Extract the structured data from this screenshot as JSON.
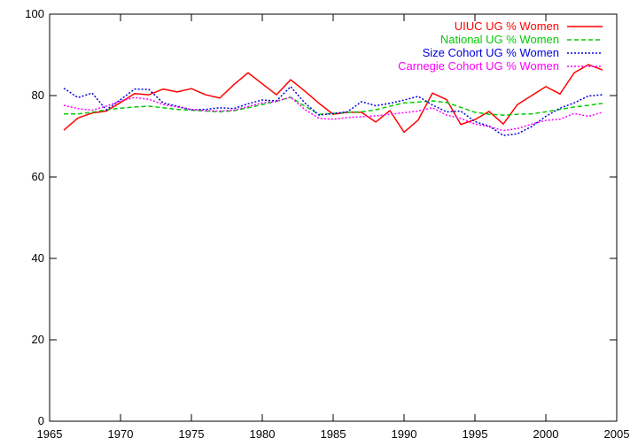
{
  "chart_data": {
    "type": "line",
    "title": "",
    "xlabel": "",
    "ylabel": "",
    "xlim": [
      1965,
      2005
    ],
    "ylim": [
      0,
      100
    ],
    "x_ticks": [
      1965,
      1970,
      1975,
      1980,
      1985,
      1990,
      1995,
      2000,
      2005
    ],
    "y_ticks": [
      0,
      20,
      40,
      60,
      80,
      100
    ],
    "grid": false,
    "legend_position": "top-right",
    "series": [
      {
        "name": "UIUC UG % Women",
        "color": "#ff0000",
        "dash": "solid",
        "x": [
          1966,
          1967,
          1968,
          1969,
          1970,
          1971,
          1972,
          1973,
          1974,
          1975,
          1976,
          1977,
          1978,
          1979,
          1980,
          1981,
          1982,
          1983,
          1984,
          1985,
          1986,
          1987,
          1988,
          1989,
          1990,
          1991,
          1992,
          1993,
          1994,
          1995,
          1996,
          1997,
          1998,
          1999,
          2000,
          2001,
          2002,
          2003,
          2004
        ],
        "values": [
          71.5,
          74.5,
          75.7,
          76.2,
          78.3,
          80.5,
          80.2,
          81.6,
          80.9,
          81.7,
          80.2,
          79.4,
          82.7,
          85.6,
          82.9,
          80.2,
          83.9,
          81.1,
          78.1,
          75.4,
          75.9,
          75.9,
          73.5,
          76.3,
          71.0,
          74.0,
          80.6,
          79.0,
          72.9,
          74.1,
          76.1,
          73.0,
          77.8,
          80.0,
          82.2,
          80.4,
          85.6,
          87.6,
          86.3
        ]
      },
      {
        "name": "National UG % Women",
        "color": "#00cc00",
        "dash": "dashed",
        "x": [
          1966,
          1967,
          1968,
          1969,
          1970,
          1971,
          1972,
          1973,
          1974,
          1975,
          1976,
          1977,
          1978,
          1979,
          1980,
          1981,
          1982,
          1983,
          1984,
          1985,
          1986,
          1987,
          1988,
          1989,
          1990,
          1991,
          1992,
          1993,
          1994,
          1995,
          1996,
          1997,
          1998,
          1999,
          2000,
          2001,
          2002,
          2003,
          2004
        ],
        "values": [
          75.5,
          75.5,
          75.9,
          76.5,
          76.9,
          77.2,
          77.4,
          77.0,
          76.6,
          76.4,
          76.2,
          76.0,
          76.3,
          77.0,
          77.8,
          78.6,
          79.6,
          77.4,
          75.4,
          75.6,
          75.9,
          76.0,
          76.5,
          77.4,
          78.2,
          78.4,
          78.7,
          78.3,
          77.1,
          75.9,
          75.4,
          75.2,
          75.4,
          75.5,
          76.0,
          76.6,
          77.2,
          77.6,
          78.1
        ]
      },
      {
        "name": "Size Cohort UG % Women",
        "color": "#0000dd",
        "dash": "dotted",
        "x": [
          1966,
          1967,
          1968,
          1969,
          1970,
          1971,
          1972,
          1973,
          1974,
          1975,
          1976,
          1977,
          1978,
          1979,
          1980,
          1981,
          1982,
          1983,
          1984,
          1985,
          1986,
          1987,
          1988,
          1989,
          1990,
          1991,
          1992,
          1993,
          1994,
          1995,
          1996,
          1997,
          1998,
          1999,
          2000,
          2001,
          2002,
          2003,
          2004
        ],
        "values": [
          81.8,
          79.5,
          80.6,
          76.5,
          79.0,
          81.6,
          81.5,
          78.2,
          77.4,
          76.5,
          76.6,
          77.0,
          76.8,
          78.0,
          78.9,
          78.7,
          82.2,
          78.2,
          75.2,
          75.6,
          76.0,
          78.5,
          77.5,
          78.1,
          78.9,
          79.8,
          77.7,
          76.0,
          76.2,
          73.6,
          72.5,
          70.2,
          70.6,
          72.4,
          74.9,
          76.9,
          78.2,
          79.9,
          80.2
        ]
      },
      {
        "name": "Carnegie Cohort UG % Women",
        "color": "#ff00ff",
        "dash": "dotted",
        "x": [
          1966,
          1967,
          1968,
          1969,
          1970,
          1971,
          1972,
          1973,
          1974,
          1975,
          1976,
          1977,
          1978,
          1979,
          1980,
          1981,
          1982,
          1983,
          1984,
          1985,
          1986,
          1987,
          1988,
          1989,
          1990,
          1991,
          1992,
          1993,
          1994,
          1995,
          1996,
          1997,
          1998,
          1999,
          2000,
          2001,
          2002,
          2003,
          2004
        ],
        "values": [
          77.6,
          76.8,
          76.4,
          77.4,
          78.7,
          79.5,
          79.1,
          77.8,
          77.2,
          76.6,
          76.3,
          76.2,
          76.4,
          77.3,
          78.2,
          78.6,
          79.6,
          76.6,
          74.4,
          74.2,
          74.6,
          74.8,
          75.0,
          75.4,
          75.8,
          76.2,
          77.0,
          75.2,
          74.4,
          73.0,
          72.4,
          71.4,
          71.9,
          73.0,
          73.9,
          74.2,
          75.6,
          74.9,
          75.9
        ]
      }
    ]
  }
}
